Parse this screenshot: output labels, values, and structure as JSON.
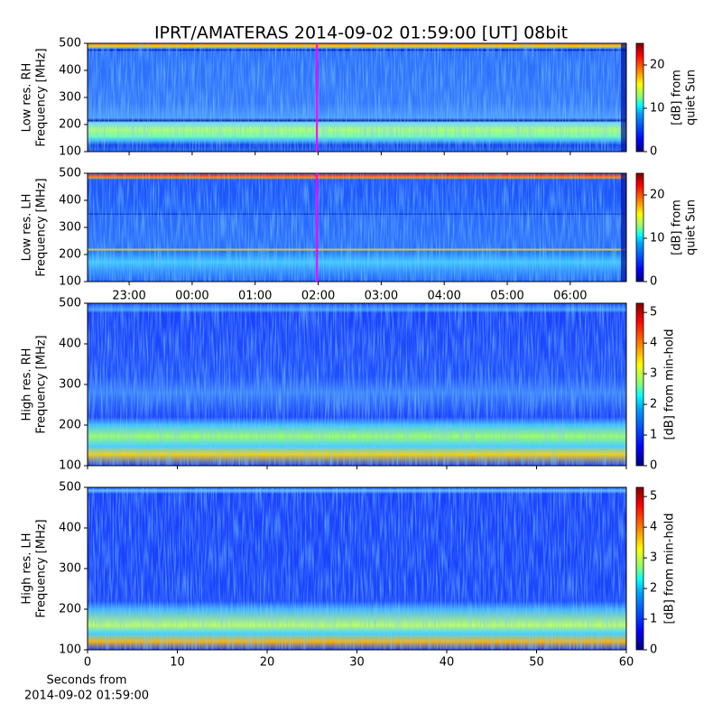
{
  "title": "IPRT/AMATERAS 2014-09-02 01:59:00 [UT]   08bit",
  "chart_data": [
    {
      "type": "heatmap",
      "ylabel": [
        "Low res. RH",
        "Frequency [MHz]"
      ],
      "ylim": [
        100,
        500
      ],
      "yticks": [
        100,
        200,
        300,
        400,
        500
      ],
      "xlim": [
        22.34,
        30.89
      ],
      "marker_x": 25.98,
      "marker_color": "#ff00ff",
      "colorbar": {
        "label": [
          "[dB] from",
          "quiet Sun"
        ],
        "lim": [
          0,
          25
        ],
        "ticks": [
          0,
          10,
          20
        ]
      }
    },
    {
      "type": "heatmap",
      "ylabel": [
        "Low res. LH",
        "Frequency [MHz]"
      ],
      "ylim": [
        100,
        500
      ],
      "yticks": [
        100,
        200,
        300,
        400,
        500
      ],
      "xlim": [
        22.34,
        30.89
      ],
      "marker_x": 25.98,
      "marker_color": "#ff00ff",
      "xticks": [
        {
          "value": 23,
          "label": "23:00"
        },
        {
          "value": 24,
          "label": "00:00"
        },
        {
          "value": 25,
          "label": "01:00"
        },
        {
          "value": 26,
          "label": "02:00"
        },
        {
          "value": 27,
          "label": "03:00"
        },
        {
          "value": 28,
          "label": "04:00"
        },
        {
          "value": 29,
          "label": "05:00"
        },
        {
          "value": 30,
          "label": "06:00"
        }
      ],
      "colorbar": {
        "label": [
          "[dB] from",
          "quiet Sun"
        ],
        "lim": [
          0,
          25
        ],
        "ticks": [
          0,
          10,
          20
        ]
      }
    },
    {
      "type": "heatmap",
      "ylabel": [
        "High res. RH",
        "Frequency [MHz]"
      ],
      "ylim": [
        100,
        500
      ],
      "yticks": [
        100,
        200,
        300,
        400,
        500
      ],
      "xlim": [
        0,
        60
      ],
      "colorbar": {
        "label": [
          "[dB] from min-hold"
        ],
        "lim": [
          0,
          5.3
        ],
        "ticks": [
          0,
          1,
          2,
          3,
          4,
          5
        ]
      }
    },
    {
      "type": "heatmap",
      "ylabel": [
        "High res. LH",
        "Frequency [MHz]"
      ],
      "ylim": [
        100,
        500
      ],
      "yticks": [
        100,
        200,
        300,
        400,
        500
      ],
      "xlim": [
        0,
        60
      ],
      "xticks": [
        0,
        10,
        20,
        30,
        40,
        50,
        60
      ],
      "xlabel": [
        "Seconds from",
        "2014-09-02 01:59:00"
      ],
      "colorbar": {
        "label": [
          "[dB] from min-hold"
        ],
        "lim": [
          0,
          5.3
        ],
        "ticks": [
          0,
          1,
          2,
          3,
          4,
          5
        ]
      }
    }
  ]
}
